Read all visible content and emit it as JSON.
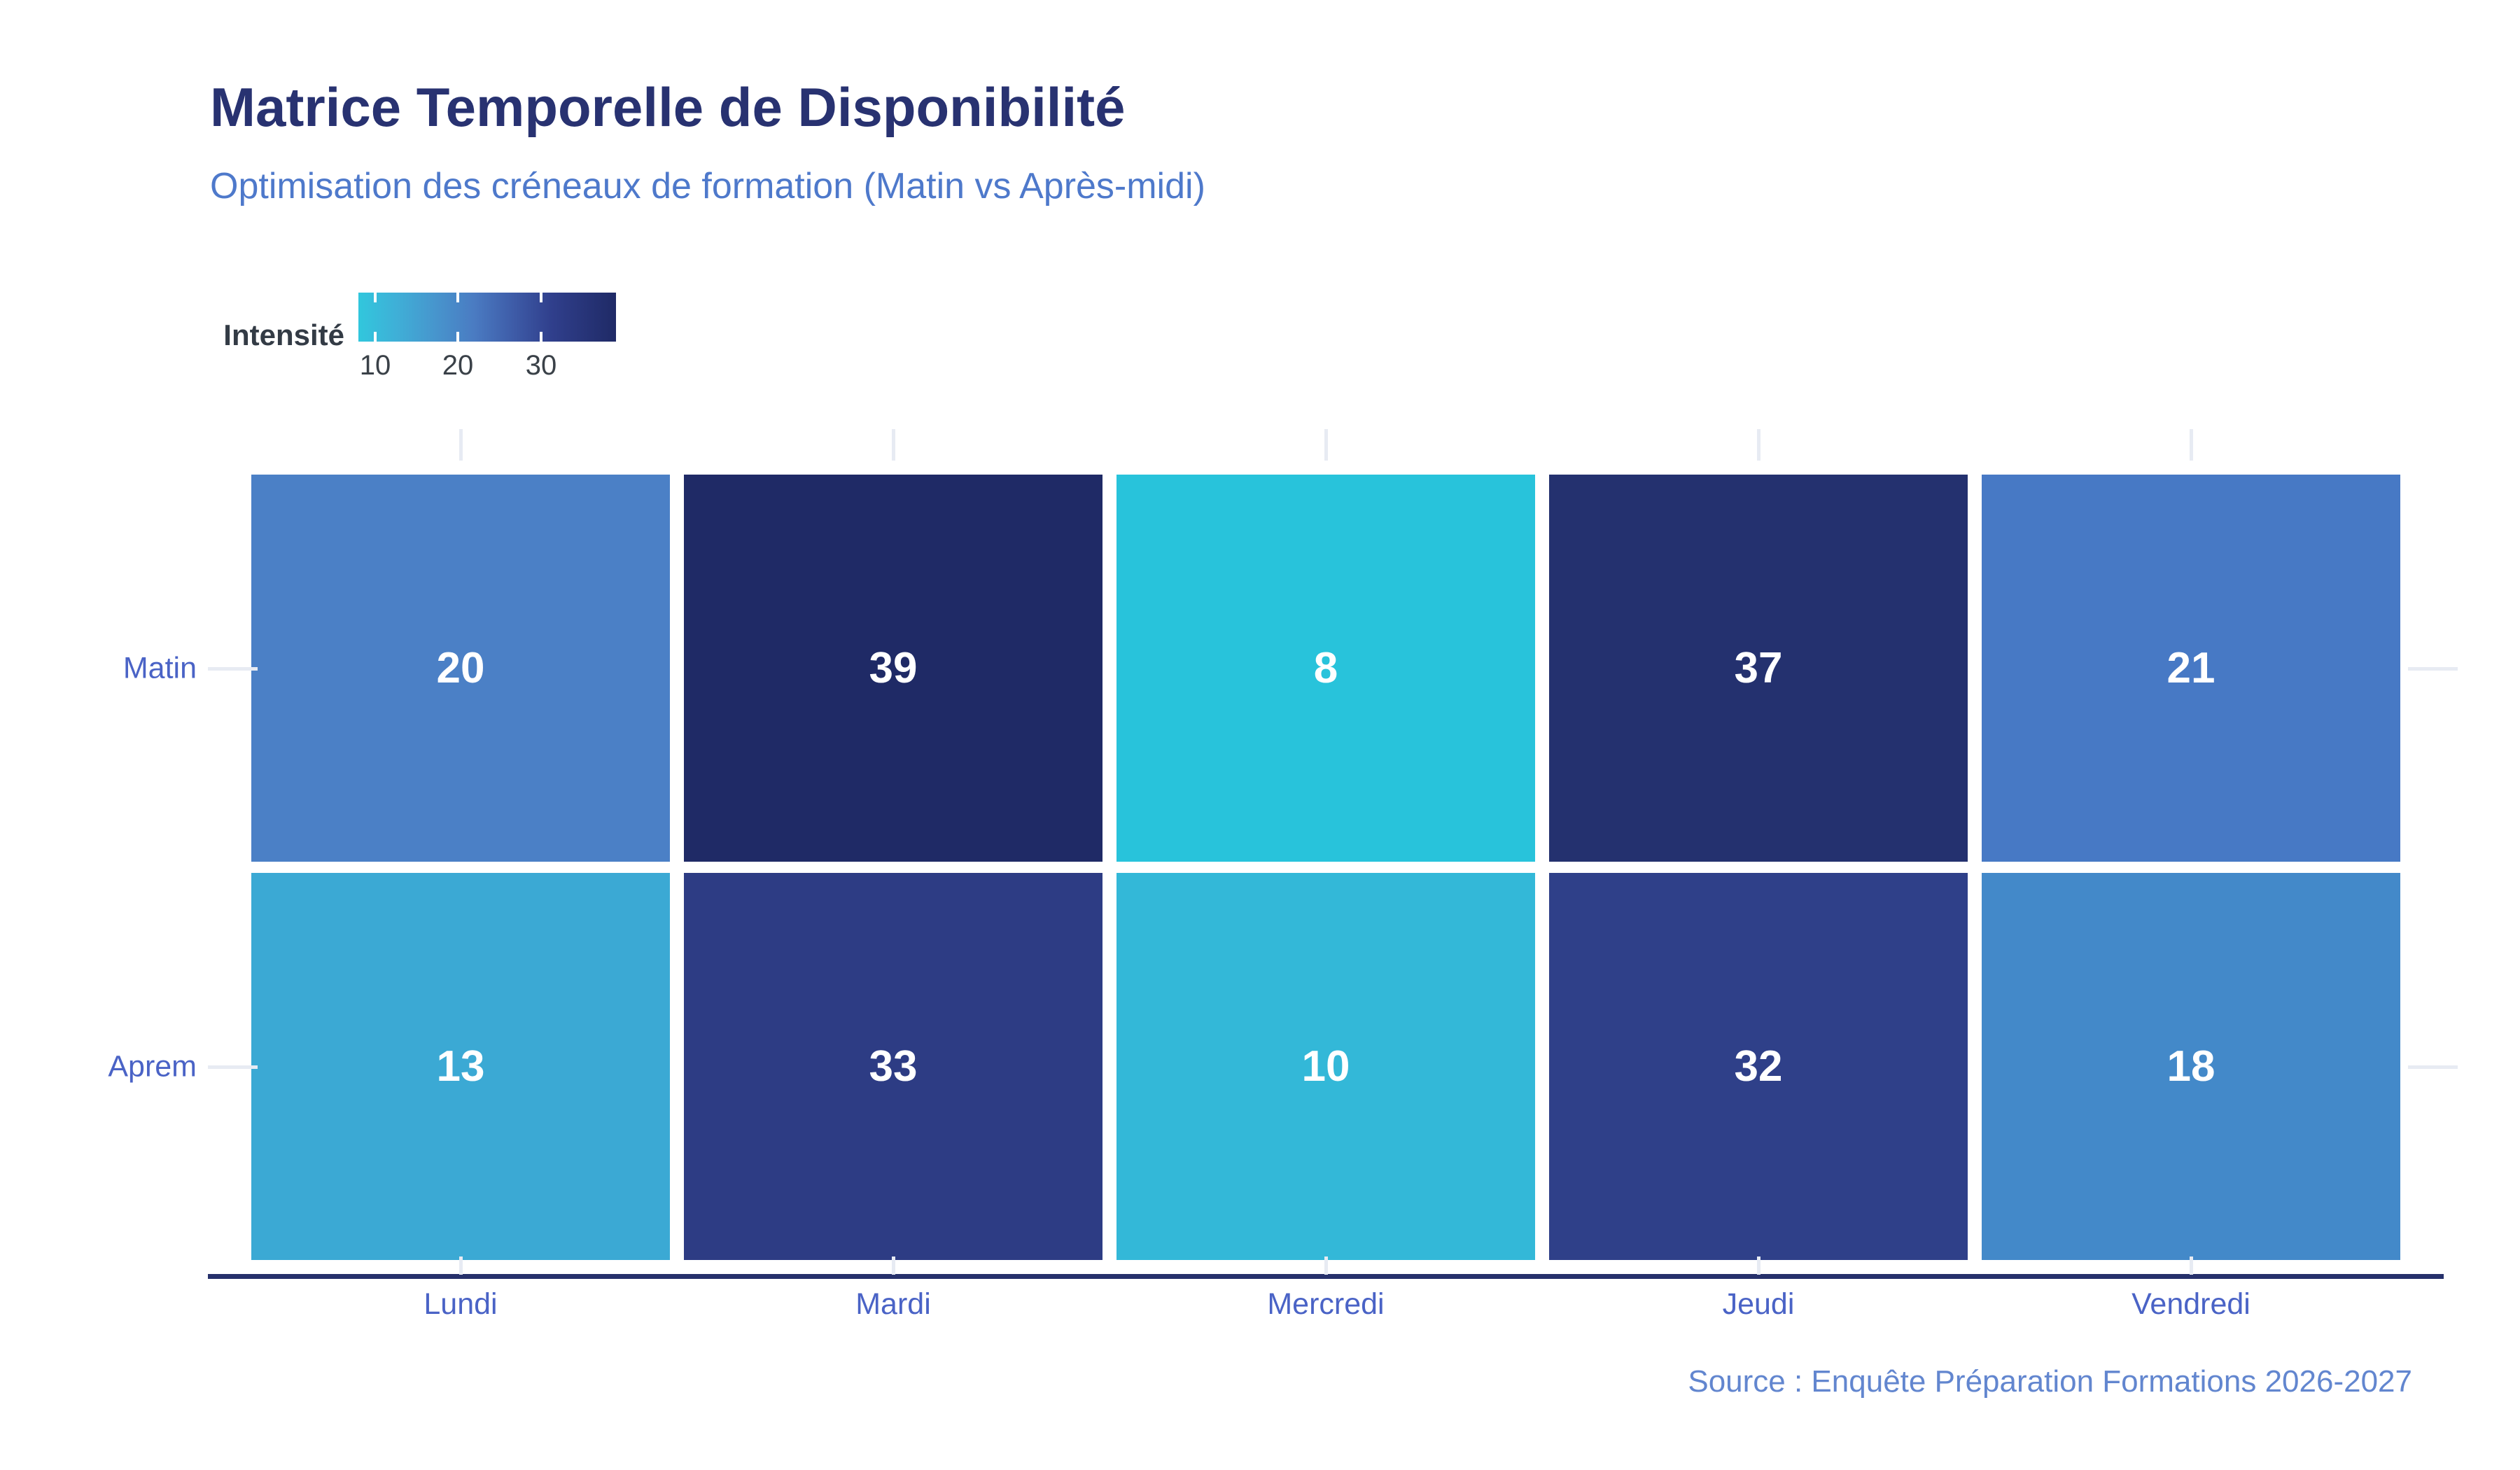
{
  "header": {
    "title": "Matrice Temporelle de Disponibilité",
    "subtitle": "Optimisation des créneaux de formation (Matin vs Après-midi)"
  },
  "chart_data": {
    "type": "heatmap",
    "title": "Matrice Temporelle de Disponibilité",
    "subtitle": "Optimisation des créneaux de formation (Matin vs Après-midi)",
    "x_categories": [
      "Lundi",
      "Mardi",
      "Mercredi",
      "Jeudi",
      "Vendredi"
    ],
    "y_categories": [
      "Matin",
      "Aprem"
    ],
    "series": [
      {
        "name": "Matin",
        "values": [
          20,
          39,
          8,
          37,
          21
        ]
      },
      {
        "name": "Aprem",
        "values": [
          13,
          33,
          10,
          32,
          18
        ]
      }
    ],
    "colorbar": {
      "label": "Intensité",
      "tick_values": [
        10,
        20,
        30
      ],
      "tick_labels": [
        "10",
        "20",
        "30"
      ],
      "domain": [
        8,
        39
      ]
    },
    "cell_colors": [
      [
        "#4B80C6",
        "#1F2A66",
        "#28C3DB",
        "#24316F",
        "#4779C5"
      ],
      [
        "#3BA9D4",
        "#2D3C84",
        "#33B8D8",
        "#2F4089",
        "#4389C9"
      ]
    ],
    "value_label_color": "#FFFFFF",
    "legend_position": "top-left",
    "grid": false
  },
  "source": {
    "text": "Source : Enquête Préparation Formations 2026-2027"
  },
  "colors": {
    "title": "#283271",
    "subtitle": "#4E79CB",
    "legend_label": "#333B45",
    "legend_tick_text": "#3A4148",
    "axis_label": "#4A63C6",
    "axis_line": "#26306B",
    "tick_mark": "#E7EBF3",
    "source_text": "#6286CF",
    "background": "#FFFFFF",
    "colorbar_gradient": [
      {
        "stop": 0,
        "color": "#31C7DD"
      },
      {
        "stop": 0.15,
        "color": "#3FAFD7"
      },
      {
        "stop": 0.3,
        "color": "#4795CD"
      },
      {
        "stop": 0.45,
        "color": "#4A7BC2"
      },
      {
        "stop": 0.6,
        "color": "#3E5CA8"
      },
      {
        "stop": 0.75,
        "color": "#303F8C"
      },
      {
        "stop": 1,
        "color": "#1F2A66"
      }
    ]
  }
}
